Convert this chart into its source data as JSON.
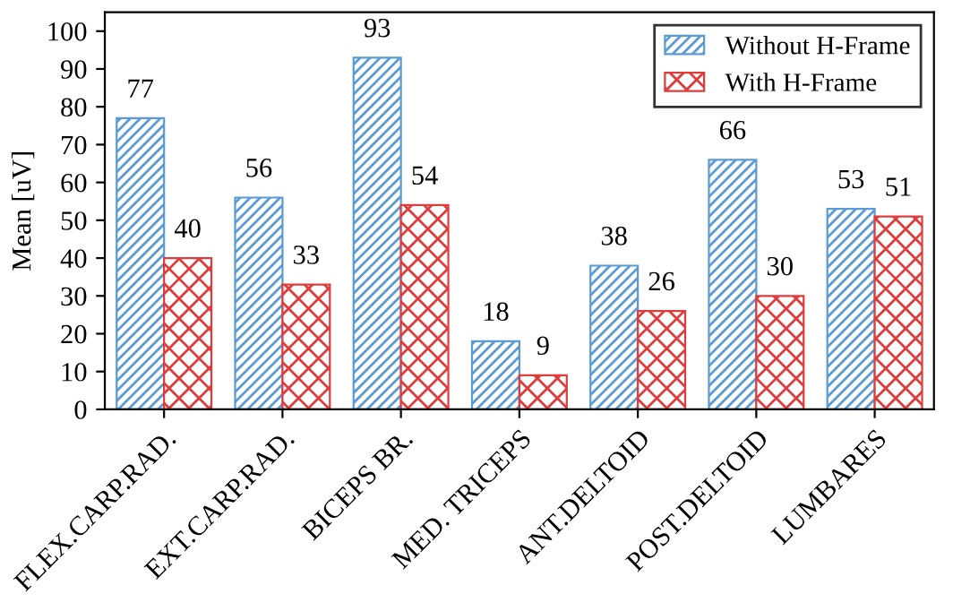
{
  "chart_data": {
    "type": "bar",
    "ylabel": "Mean [uV]",
    "categories": [
      "FLEX.CARP.RAD.",
      "EXT.CARP.RAD.",
      "BICEPS BR.",
      "MED. TRICEPS",
      "ANT.DELTOID",
      "POST.DELTOID",
      "LUMBARES"
    ],
    "series": [
      {
        "name": "Without H-Frame",
        "color": "#5b9bd5",
        "values": [
          77,
          56,
          93,
          18,
          38,
          66,
          53
        ]
      },
      {
        "name": "With H-Frame",
        "color": "#e03c3c",
        "values": [
          40,
          33,
          54,
          9,
          26,
          30,
          51
        ]
      }
    ],
    "ylim": [
      0,
      105
    ],
    "yticks": [
      0,
      10,
      20,
      30,
      40,
      50,
      60,
      70,
      80,
      90,
      100
    ],
    "data_labels": true,
    "legend": "top right",
    "grid": false
  }
}
